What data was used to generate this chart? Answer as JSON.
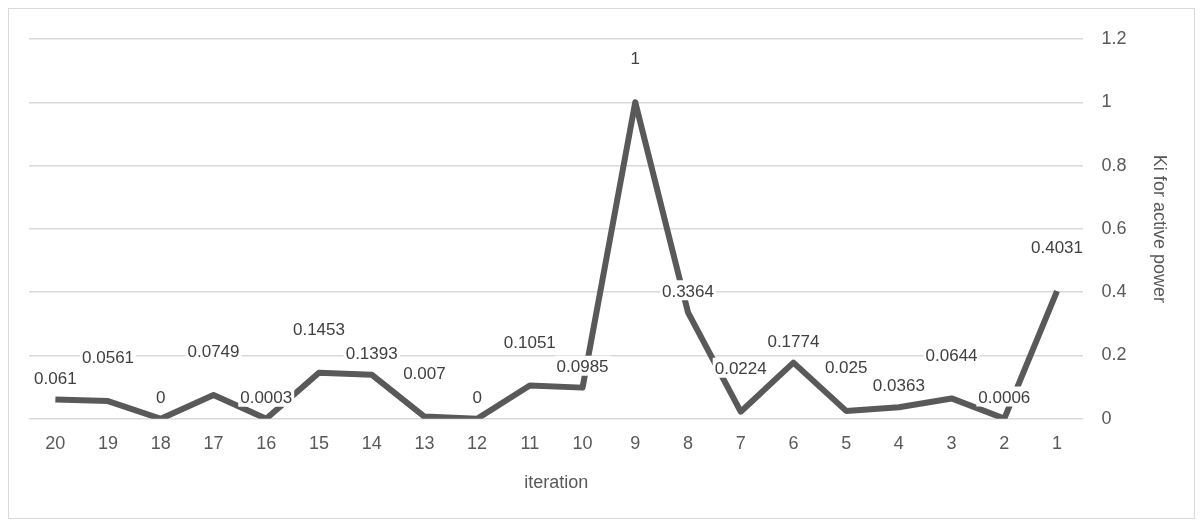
{
  "chart_data": {
    "type": "line",
    "xlabel": "iteration",
    "y2label": "Ki for active power",
    "categories": [
      "20",
      "19",
      "18",
      "17",
      "16",
      "15",
      "14",
      "13",
      "12",
      "11",
      "10",
      "9",
      "8",
      "7",
      "6",
      "5",
      "4",
      "3",
      "2",
      "1"
    ],
    "series": [
      {
        "color": "#595959",
        "axis": "y2",
        "values": [
          0.061,
          0.0561,
          0,
          0.0749,
          0.0003,
          0.1453,
          0.1393,
          0.007,
          0,
          0.1051,
          0.0985,
          1,
          0.3364,
          0.0224,
          0.1774,
          0.025,
          0.0363,
          0.0644,
          0.0006,
          0.4031
        ]
      }
    ],
    "y2lim": [
      0,
      1.2
    ],
    "y2ticks": [
      0,
      0.2,
      0.4,
      0.6,
      0.8,
      1,
      1.2
    ],
    "grid": "y",
    "data_labels": true,
    "legend": false,
    "marker": "none",
    "line_style": "solid"
  }
}
